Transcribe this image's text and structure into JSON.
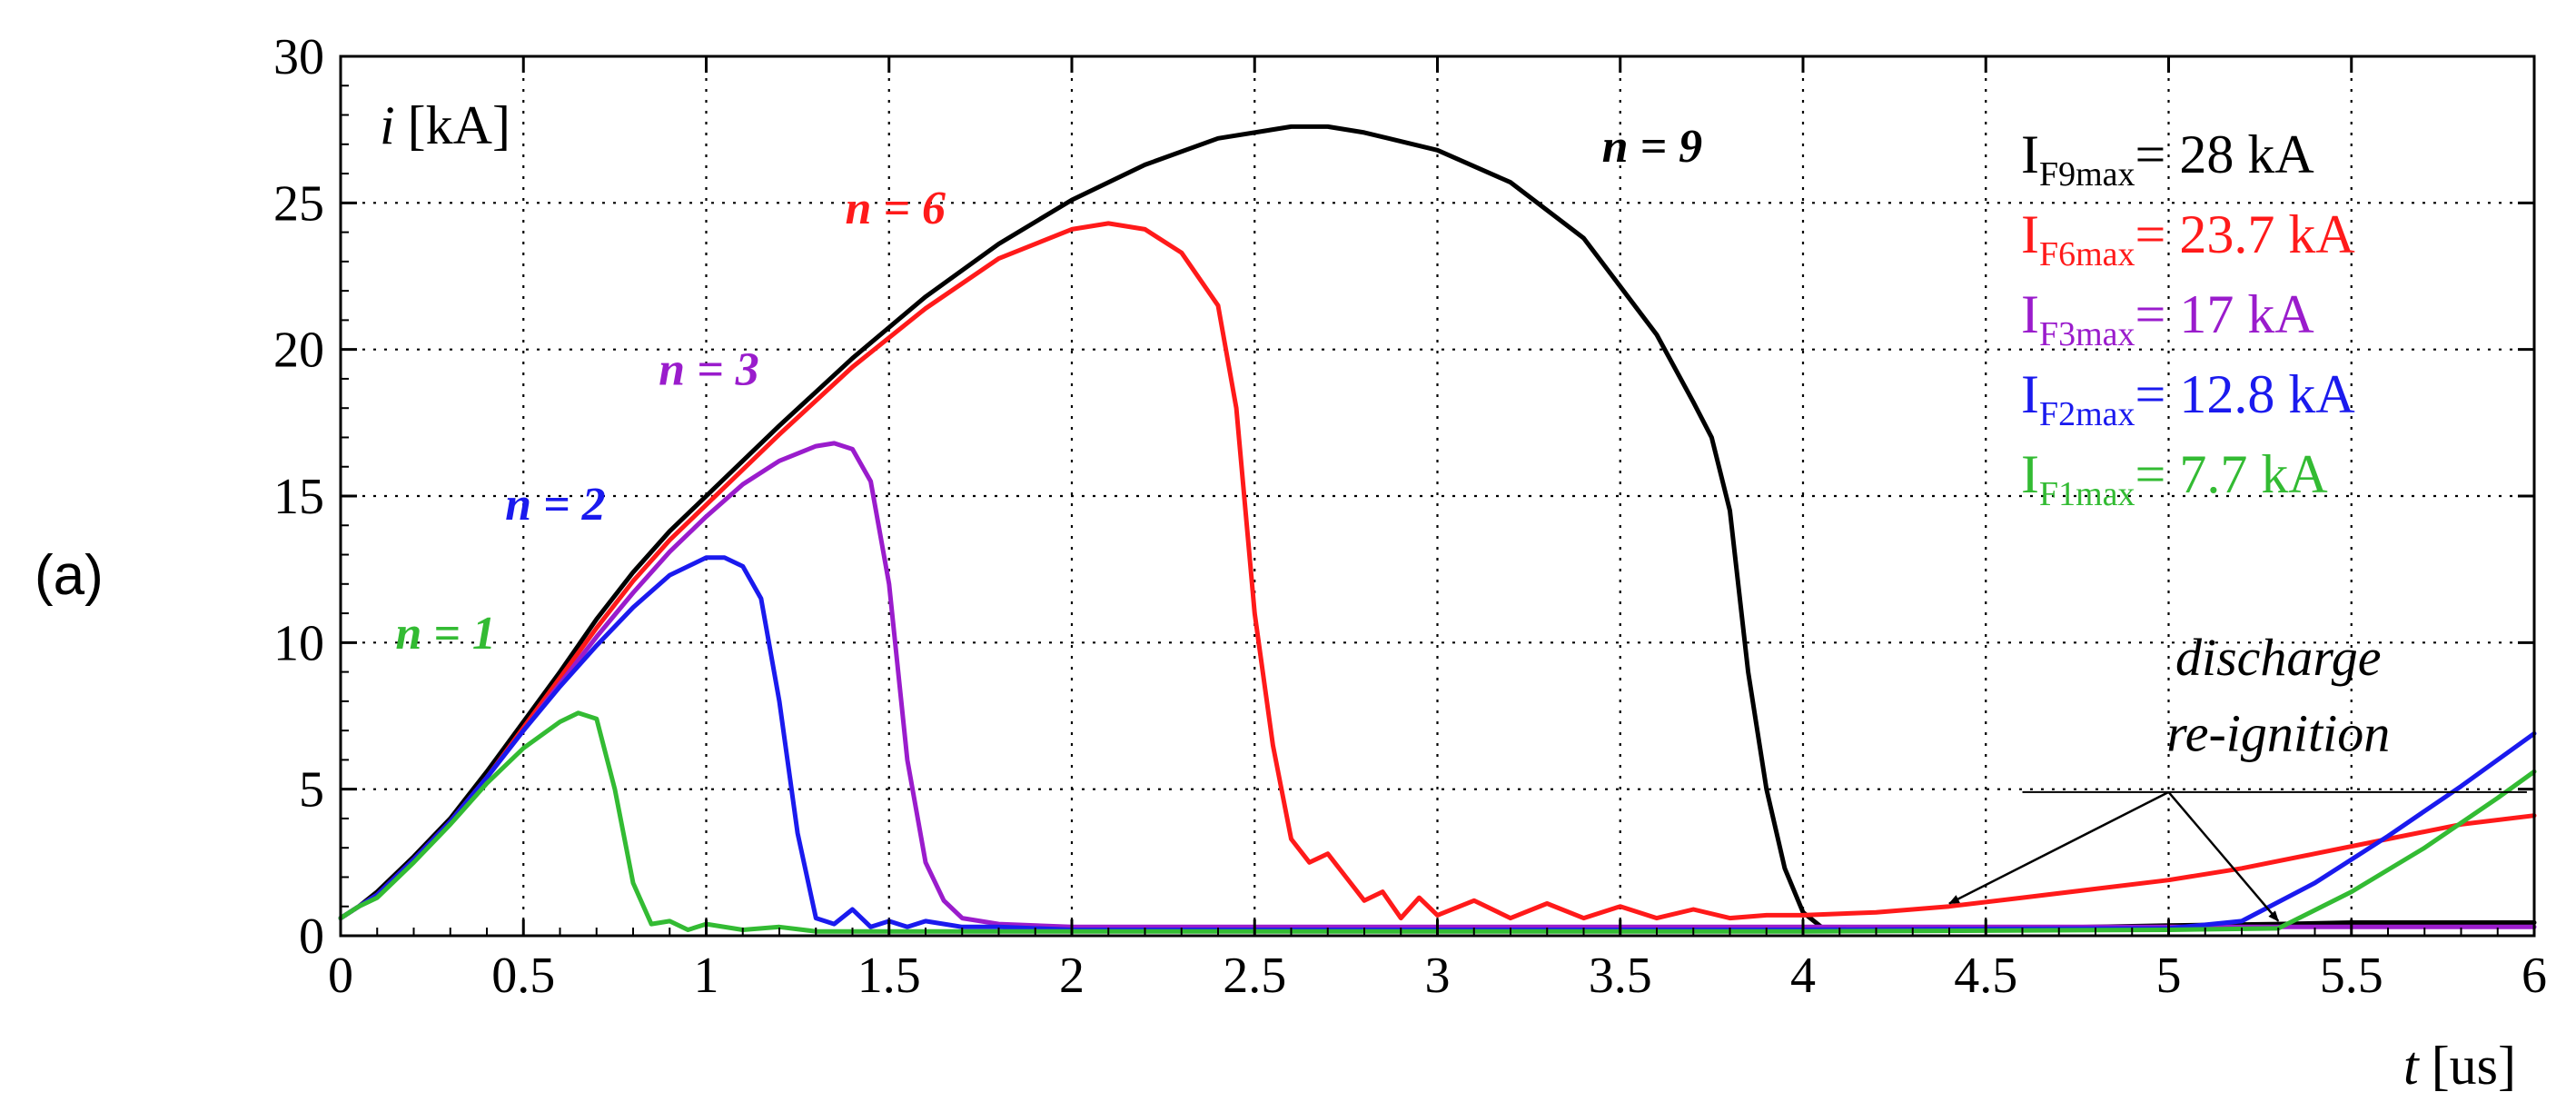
{
  "panel_label": "(a)",
  "chart_data": {
    "type": "line",
    "ylabel_var": "i",
    "ylabel_unit": "[kA]",
    "xlabel_var": "t",
    "xlabel_unit": "[us]",
    "xlim": [
      0,
      6
    ],
    "ylim": [
      0,
      30
    ],
    "xticks": [
      0,
      0.5,
      1,
      1.5,
      2,
      2.5,
      3,
      3.5,
      4,
      4.5,
      5,
      5.5,
      6
    ],
    "xtick_labels": [
      "0",
      "0.5",
      "1",
      "1.5",
      "2",
      "2.5",
      "3",
      "3.5",
      "4",
      "4.5",
      "5",
      "5.5",
      "6"
    ],
    "yticks": [
      0,
      5,
      10,
      15,
      20,
      25,
      30
    ],
    "ytick_labels": [
      "0",
      "5",
      "10",
      "15",
      "20",
      "25",
      "30"
    ],
    "grid": true,
    "series": [
      {
        "name": "n = 9",
        "color": "#000000",
        "x": [
          0,
          0.05,
          0.1,
          0.2,
          0.3,
          0.4,
          0.5,
          0.6,
          0.7,
          0.8,
          0.9,
          1.0,
          1.2,
          1.4,
          1.6,
          1.8,
          2.0,
          2.2,
          2.4,
          2.6,
          2.7,
          2.8,
          3.0,
          3.2,
          3.4,
          3.6,
          3.7,
          3.75,
          3.8,
          3.85,
          3.9,
          3.95,
          4.0,
          4.05,
          4.1,
          4.3,
          4.5,
          4.8,
          5.0,
          5.3,
          5.5,
          5.8,
          6.0
        ],
        "y": [
          0.6,
          1.0,
          1.5,
          2.7,
          4.0,
          5.6,
          7.3,
          9.0,
          10.8,
          12.4,
          13.8,
          15.0,
          17.4,
          19.7,
          21.8,
          23.6,
          25.1,
          26.3,
          27.2,
          27.6,
          27.6,
          27.4,
          26.8,
          25.7,
          23.8,
          20.5,
          18.2,
          17.0,
          14.5,
          9.0,
          5.0,
          2.3,
          0.8,
          0.3,
          0.2,
          0.2,
          0.25,
          0.3,
          0.35,
          0.4,
          0.45,
          0.45,
          0.45
        ]
      },
      {
        "name": "n = 6",
        "color": "#ff1a1a",
        "x": [
          0,
          0.05,
          0.1,
          0.2,
          0.3,
          0.4,
          0.5,
          0.6,
          0.7,
          0.8,
          0.9,
          1.0,
          1.2,
          1.4,
          1.6,
          1.8,
          2.0,
          2.1,
          2.2,
          2.3,
          2.4,
          2.45,
          2.5,
          2.55,
          2.6,
          2.65,
          2.7,
          2.75,
          2.8,
          2.85,
          2.9,
          2.95,
          3.0,
          3.1,
          3.2,
          3.3,
          3.4,
          3.5,
          3.6,
          3.7,
          3.8,
          3.9,
          4.0,
          4.2,
          4.4,
          4.6,
          4.8,
          5.0,
          5.2,
          5.4,
          5.6,
          5.8,
          6.0
        ],
        "y": [
          0.6,
          1.0,
          1.4,
          2.6,
          3.9,
          5.4,
          7.1,
          8.8,
          10.5,
          12.1,
          13.5,
          14.7,
          17.1,
          19.4,
          21.4,
          23.1,
          24.1,
          24.3,
          24.1,
          23.3,
          21.5,
          18.0,
          11.0,
          6.5,
          3.3,
          2.5,
          2.8,
          2.0,
          1.2,
          1.5,
          0.6,
          1.3,
          0.7,
          1.2,
          0.6,
          1.1,
          0.6,
          1.0,
          0.6,
          0.9,
          0.6,
          0.7,
          0.7,
          0.8,
          1.0,
          1.3,
          1.6,
          1.9,
          2.3,
          2.8,
          3.3,
          3.8,
          4.1
        ]
      },
      {
        "name": "n = 3",
        "color": "#9a1ccc",
        "x": [
          0,
          0.05,
          0.1,
          0.2,
          0.3,
          0.4,
          0.5,
          0.6,
          0.7,
          0.8,
          0.9,
          1.0,
          1.1,
          1.2,
          1.3,
          1.35,
          1.4,
          1.45,
          1.5,
          1.55,
          1.6,
          1.65,
          1.7,
          1.8,
          2.0,
          2.5,
          3.0,
          3.5,
          4.0,
          4.5,
          5.0,
          5.5,
          6.0
        ],
        "y": [
          0.6,
          1.0,
          1.4,
          2.6,
          3.9,
          5.4,
          7.0,
          8.6,
          10.2,
          11.7,
          13.1,
          14.3,
          15.4,
          16.2,
          16.7,
          16.8,
          16.6,
          15.5,
          12.0,
          6.0,
          2.5,
          1.2,
          0.6,
          0.4,
          0.3,
          0.3,
          0.3,
          0.3,
          0.3,
          0.3,
          0.3,
          0.3,
          0.3
        ]
      },
      {
        "name": "n = 2",
        "color": "#1a1aee",
        "x": [
          0,
          0.05,
          0.1,
          0.2,
          0.3,
          0.4,
          0.5,
          0.6,
          0.7,
          0.8,
          0.9,
          1.0,
          1.05,
          1.1,
          1.15,
          1.2,
          1.25,
          1.3,
          1.35,
          1.4,
          1.45,
          1.5,
          1.55,
          1.6,
          1.7,
          1.8,
          2.0,
          3.0,
          4.0,
          5.0,
          5.2,
          5.4,
          5.6,
          5.8,
          6.0
        ],
        "y": [
          0.6,
          1.0,
          1.4,
          2.6,
          3.9,
          5.4,
          7.0,
          8.5,
          9.9,
          11.2,
          12.3,
          12.9,
          12.9,
          12.6,
          11.5,
          8.0,
          3.5,
          0.6,
          0.4,
          0.9,
          0.3,
          0.5,
          0.3,
          0.5,
          0.3,
          0.3,
          0.2,
          0.2,
          0.2,
          0.25,
          0.5,
          1.8,
          3.4,
          5.1,
          6.9
        ]
      },
      {
        "name": "n = 1",
        "color": "#33bb33",
        "x": [
          0,
          0.05,
          0.1,
          0.2,
          0.3,
          0.4,
          0.5,
          0.6,
          0.65,
          0.7,
          0.75,
          0.8,
          0.85,
          0.9,
          0.95,
          1.0,
          1.1,
          1.2,
          1.3,
          1.5,
          2.0,
          3.0,
          4.0,
          5.0,
          5.3,
          5.5,
          5.7,
          5.9,
          6.0
        ],
        "y": [
          0.6,
          1.0,
          1.3,
          2.5,
          3.8,
          5.2,
          6.4,
          7.3,
          7.6,
          7.4,
          5.0,
          1.8,
          0.4,
          0.5,
          0.2,
          0.4,
          0.2,
          0.3,
          0.15,
          0.15,
          0.15,
          0.15,
          0.15,
          0.2,
          0.25,
          1.5,
          3.0,
          4.7,
          5.6
        ]
      }
    ],
    "series_labels": [
      {
        "text": "n = 9",
        "color": "#000000",
        "x": 3.45,
        "y": 26.4
      },
      {
        "text": "n = 6",
        "color": "#ff1a1a",
        "x": 1.38,
        "y": 24.3
      },
      {
        "text": "n = 3",
        "color": "#9a1ccc",
        "x": 0.87,
        "y": 18.8
      },
      {
        "text": "n = 2",
        "color": "#1a1aee",
        "x": 0.45,
        "y": 14.2
      },
      {
        "text": "n = 1",
        "color": "#33bb33",
        "x": 0.15,
        "y": 9.8
      }
    ],
    "legend_placement": "top-right",
    "legend": [
      {
        "main": "I",
        "sub": "F9max",
        "rest": "= 28 kA",
        "color": "#000000"
      },
      {
        "main": "I",
        "sub": "F6max",
        "rest": "= 23.7 kA",
        "color": "#ff1a1a"
      },
      {
        "main": "I",
        "sub": "F3max",
        "rest": "= 17 kA",
        "color": "#9a1ccc"
      },
      {
        "main": "I",
        "sub": "F2max",
        "rest": "= 12.8 kA",
        "color": "#1a1aee"
      },
      {
        "main": "I",
        "sub": "F1max",
        "rest": "= 7.7 kA",
        "color": "#33bb33"
      }
    ],
    "annotation": {
      "lines": [
        "discharge",
        "re-ignition"
      ],
      "text_x": 5.3,
      "text_y_lines": [
        8.9,
        6.3
      ],
      "underline_y": 4.9,
      "arrow_origin": [
        5.0,
        4.9
      ],
      "arrow_targets": [
        [
          4.4,
          1.1
        ],
        [
          5.3,
          0.5
        ]
      ]
    }
  }
}
